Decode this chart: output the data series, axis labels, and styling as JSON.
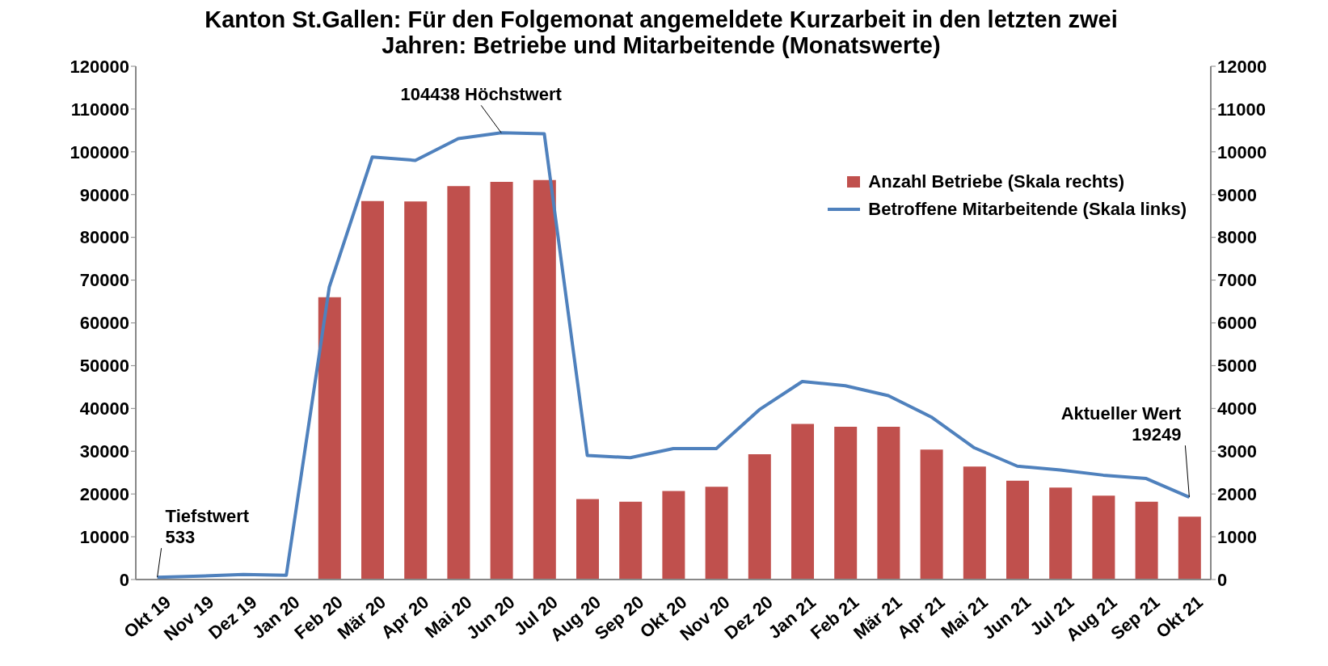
{
  "chart_data": {
    "type": "bar",
    "title": "Kanton St.Gallen: Für den Folgemonat angemeldete Kurzarbeit in den letzten zwei Jahren: Betriebe und Mitarbeitende (Monatswerte)",
    "categories": [
      "Okt 19",
      "Nov 19",
      "Dez 19",
      "Jan 20",
      "Feb 20",
      "Mär 20",
      "Apr 20",
      "Mai 20",
      "Jun 20",
      "Jul 20",
      "Aug 20",
      "Sep 20",
      "Okt 20",
      "Nov 20",
      "Dez 20",
      "Jan 21",
      "Feb 21",
      "Mär 21",
      "Apr 21",
      "Mai 21",
      "Jun 21",
      "Jul 21",
      "Aug 21",
      "Sep 21",
      "Okt 21"
    ],
    "series": [
      {
        "name": "Anzahl Betriebe (Skala rechts)",
        "axis": "y2",
        "color": "#c0504d",
        "values": [
          0,
          0,
          0,
          0,
          6600,
          8850,
          8840,
          9200,
          9300,
          9340,
          1880,
          1820,
          2070,
          2170,
          2930,
          3640,
          3570,
          3570,
          3040,
          2640,
          2310,
          2150,
          1960,
          1820,
          1470
        ]
      },
      {
        "name": "Betroffene Mitarbeitende (Skala links)",
        "type": "line",
        "axis": "y",
        "color": "#4f81bd",
        "values": [
          533,
          800,
          1200,
          1000,
          68400,
          98800,
          98000,
          103100,
          104438,
          104200,
          29000,
          28500,
          30600,
          30600,
          39700,
          46300,
          45300,
          43000,
          38000,
          30800,
          26500,
          25600,
          24400,
          23600,
          19249
        ]
      }
    ],
    "ylim": [
      0,
      120000
    ],
    "yticks": [
      0,
      10000,
      20000,
      30000,
      40000,
      50000,
      60000,
      70000,
      80000,
      90000,
      100000,
      110000,
      120000
    ],
    "y2lim": [
      0,
      12000
    ],
    "y2ticks": [
      0,
      1000,
      2000,
      3000,
      4000,
      5000,
      6000,
      7000,
      8000,
      9000,
      10000,
      11000,
      12000
    ],
    "annotations": [
      {
        "text": "104438 Höchstwert",
        "x": "Jun 20",
        "y": 104438
      },
      {
        "text": "Tiefstwert\n533",
        "x": "Okt 19",
        "y": 533
      },
      {
        "text": "Aktueller Wert\n19249",
        "x": "Okt 21",
        "y": 19249
      }
    ],
    "grid": false,
    "legend": "top right",
    "marker": "none",
    "line_style": "solid"
  }
}
